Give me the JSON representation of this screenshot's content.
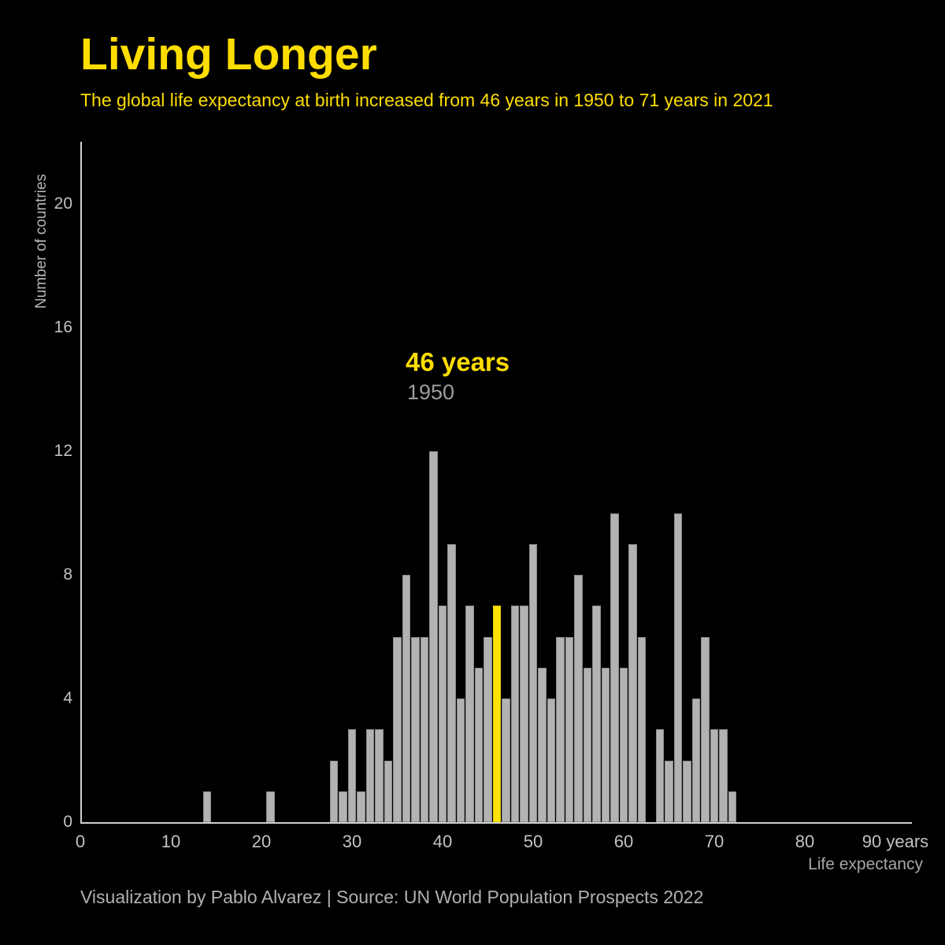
{
  "header": {
    "title": "Living Longer",
    "subtitle": "The global life expectancy at birth increased from 46 years in 1950 to 71 years in 2021"
  },
  "annotation": {
    "value": "46 years",
    "year": "1950"
  },
  "axes": {
    "y_label": "Number of countries",
    "x_label": "Life expectancy",
    "y_ticks": [
      0,
      4,
      8,
      12,
      16,
      20
    ],
    "x_ticks": [
      {
        "v": 0,
        "label": "0"
      },
      {
        "v": 10,
        "label": "10"
      },
      {
        "v": 20,
        "label": "20"
      },
      {
        "v": 30,
        "label": "30"
      },
      {
        "v": 40,
        "label": "40"
      },
      {
        "v": 50,
        "label": "50"
      },
      {
        "v": 60,
        "label": "60"
      },
      {
        "v": 70,
        "label": "70"
      },
      {
        "v": 80,
        "label": "80"
      },
      {
        "v": 90,
        "label": "90 years"
      }
    ]
  },
  "footer": {
    "credit": "Visualization by Pablo Alvarez | Source: UN World Population Prospects 2022"
  },
  "colors": {
    "background": "#000000",
    "accent_yellow": "#ffdd00",
    "highlight_bar": "#ffe206",
    "bar_fill": "#b2b2b2",
    "bar_border": "#8b8b8b",
    "axis_line": "#cfcfcf",
    "tick_text": "#c2c2c2",
    "muted_text": "#9e9e9e"
  },
  "chart_data": {
    "type": "bar",
    "title": "Living Longer",
    "xlabel": "Life expectancy",
    "ylabel": "Number of countries",
    "xlim": [
      0,
      92
    ],
    "ylim": [
      0,
      22
    ],
    "grid": false,
    "legend": "none",
    "highlight_x": 46,
    "highlight_label": "46 years (1950)",
    "x": [
      14,
      21,
      28,
      29,
      30,
      31,
      32,
      33,
      34,
      35,
      36,
      37,
      38,
      39,
      40,
      41,
      42,
      43,
      44,
      45,
      46,
      47,
      48,
      49,
      50,
      51,
      52,
      53,
      54,
      55,
      56,
      57,
      58,
      59,
      60,
      61,
      62,
      64,
      65,
      66,
      67,
      68,
      69,
      70,
      71,
      72
    ],
    "values": [
      1,
      1,
      2,
      1,
      3,
      1,
      3,
      3,
      2,
      6,
      8,
      6,
      6,
      12,
      7,
      9,
      4,
      7,
      5,
      6,
      7,
      4,
      7,
      7,
      9,
      5,
      4,
      6,
      6,
      8,
      5,
      7,
      5,
      10,
      5,
      9,
      6,
      3,
      2,
      10,
      2,
      4,
      6,
      3,
      3,
      1
    ]
  }
}
